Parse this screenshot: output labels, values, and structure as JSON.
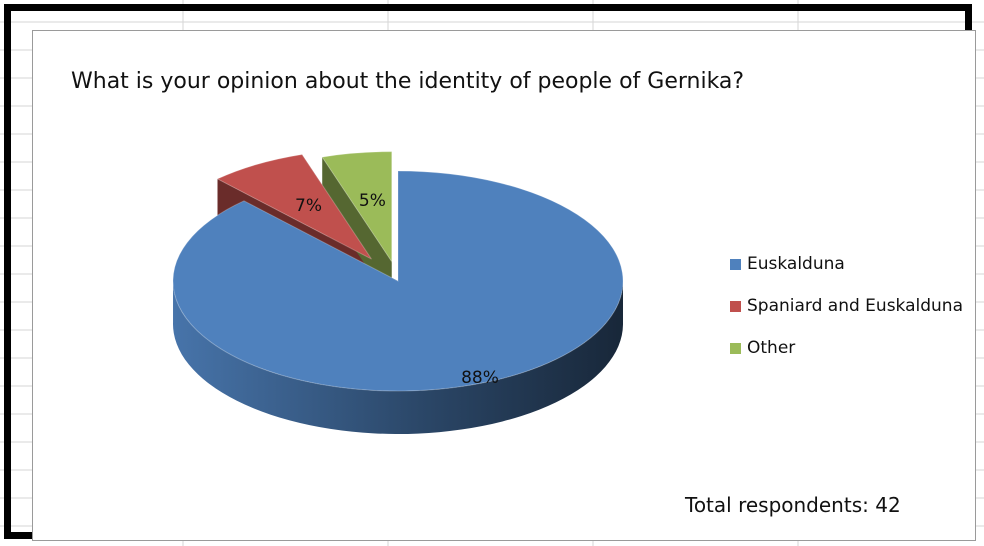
{
  "chart_data": {
    "type": "pie",
    "title": "What is your opinion about the identity of people of Gernika?",
    "categories": [
      "Euskalduna",
      "Spaniard and Euskalduna",
      "Other"
    ],
    "values": [
      88,
      7,
      5
    ],
    "labels": [
      "88%",
      "7%",
      "5%"
    ],
    "colors": [
      "#4f81bd",
      "#c0504d",
      "#9bbb59"
    ],
    "legend_position": "right",
    "annotation": "Total respondents: 42"
  }
}
